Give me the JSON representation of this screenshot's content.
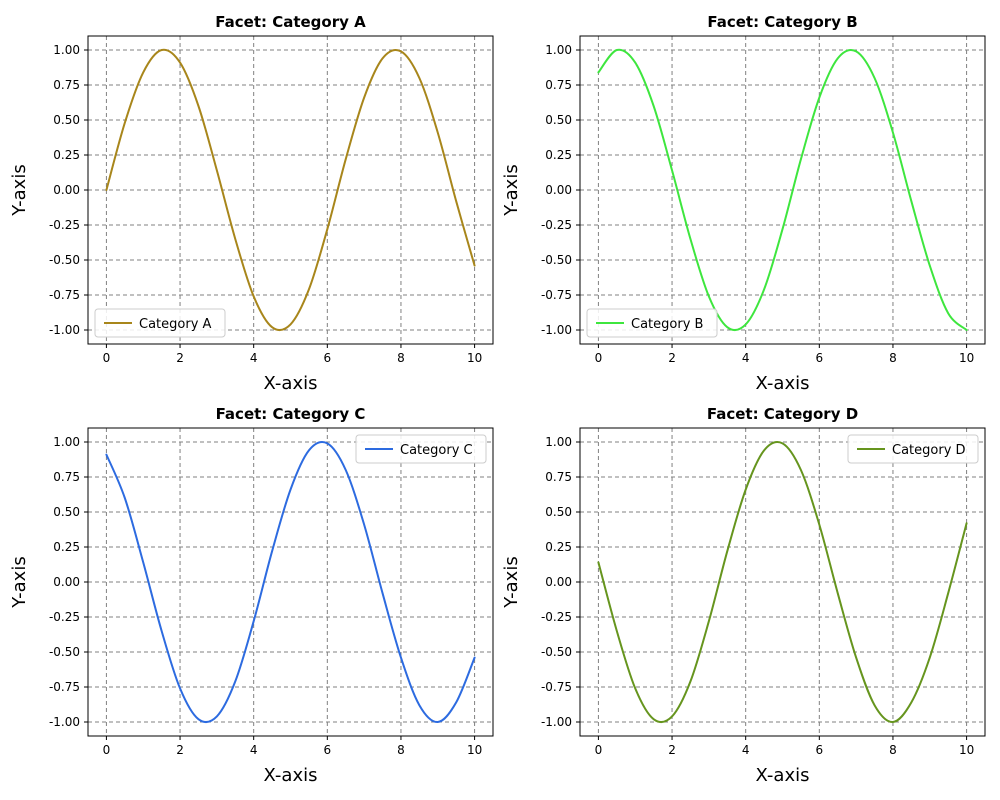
{
  "chart_data": [
    {
      "type": "line",
      "title": "Facet: Category A",
      "xlabel": "X-axis",
      "ylabel": "Y-axis",
      "xlim": [
        0,
        10
      ],
      "ylim": [
        -1.1,
        1.1
      ],
      "xticks": [
        "0",
        "2",
        "4",
        "6",
        "8",
        "10"
      ],
      "yticks": [
        "-1.00",
        "-0.75",
        "-0.50",
        "-0.25",
        "0.00",
        "0.25",
        "0.50",
        "0.75",
        "1.00"
      ],
      "grid": true,
      "legend_position": "lower-left",
      "series": [
        {
          "name": "Category A",
          "color": "#a8861b",
          "x": [
            0,
            0.5,
            1,
            1.5,
            2,
            2.5,
            3,
            3.5,
            4,
            4.5,
            5,
            5.5,
            6,
            6.5,
            7,
            7.5,
            8,
            8.5,
            9,
            9.5,
            10
          ],
          "y": [
            0.0,
            0.48,
            0.84,
            1.0,
            0.91,
            0.6,
            0.14,
            -0.35,
            -0.76,
            -0.98,
            -0.96,
            -0.71,
            -0.28,
            0.22,
            0.66,
            0.94,
            0.99,
            0.8,
            0.41,
            -0.08,
            -0.54
          ]
        }
      ]
    },
    {
      "type": "line",
      "title": "Facet: Category B",
      "xlabel": "X-axis",
      "ylabel": "Y-axis",
      "xlim": [
        0,
        10
      ],
      "ylim": [
        -1.1,
        1.1
      ],
      "xticks": [
        "0",
        "2",
        "4",
        "6",
        "8",
        "10"
      ],
      "yticks": [
        "-1.00",
        "-0.75",
        "-0.50",
        "-0.25",
        "0.00",
        "0.25",
        "0.50",
        "0.75",
        "1.00"
      ],
      "grid": true,
      "legend_position": "lower-left",
      "series": [
        {
          "name": "Category B",
          "color": "#3ee63e",
          "x": [
            0,
            0.5,
            1,
            1.5,
            2,
            2.5,
            3,
            3.5,
            4,
            4.5,
            5,
            5.5,
            6,
            6.5,
            7,
            7.5,
            8,
            8.5,
            9,
            9.5,
            10
          ],
          "y": [
            0.84,
            1.0,
            0.91,
            0.6,
            0.14,
            -0.35,
            -0.76,
            -0.98,
            -0.96,
            -0.71,
            -0.28,
            0.22,
            0.66,
            0.94,
            0.99,
            0.8,
            0.41,
            -0.08,
            -0.54,
            -0.88,
            -1.0
          ]
        }
      ]
    },
    {
      "type": "line",
      "title": "Facet: Category C",
      "xlabel": "X-axis",
      "ylabel": "Y-axis",
      "xlim": [
        0,
        10
      ],
      "ylim": [
        -1.1,
        1.1
      ],
      "xticks": [
        "0",
        "2",
        "4",
        "6",
        "8",
        "10"
      ],
      "yticks": [
        "-1.00",
        "-0.75",
        "-0.50",
        "-0.25",
        "0.00",
        "0.25",
        "0.50",
        "0.75",
        "1.00"
      ],
      "grid": true,
      "legend_position": "upper-right",
      "series": [
        {
          "name": "Category C",
          "color": "#2d6be0",
          "x": [
            0,
            0.5,
            1,
            1.5,
            2,
            2.5,
            3,
            3.5,
            4,
            4.5,
            5,
            5.5,
            6,
            6.5,
            7,
            7.5,
            8,
            8.5,
            9,
            9.5,
            10
          ],
          "y": [
            0.91,
            0.6,
            0.14,
            -0.35,
            -0.76,
            -0.98,
            -0.96,
            -0.71,
            -0.28,
            0.22,
            0.66,
            0.94,
            0.99,
            0.8,
            0.41,
            -0.08,
            -0.54,
            -0.88,
            -1.0,
            -0.86,
            -0.54
          ]
        }
      ]
    },
    {
      "type": "line",
      "title": "Facet: Category D",
      "xlabel": "X-axis",
      "ylabel": "Y-axis",
      "xlim": [
        0,
        10
      ],
      "ylim": [
        -1.1,
        1.1
      ],
      "xticks": [
        "0",
        "2",
        "4",
        "6",
        "8",
        "10"
      ],
      "yticks": [
        "-1.00",
        "-0.75",
        "-0.50",
        "-0.25",
        "0.00",
        "0.25",
        "0.50",
        "0.75",
        "1.00"
      ],
      "grid": true,
      "legend_position": "upper-right",
      "series": [
        {
          "name": "Category D",
          "color": "#66951e",
          "x": [
            0,
            0.5,
            1,
            1.5,
            2,
            2.5,
            3,
            3.5,
            4,
            4.5,
            5,
            5.5,
            6,
            6.5,
            7,
            7.5,
            8,
            8.5,
            9,
            9.5,
            10
          ],
          "y": [
            0.14,
            -0.35,
            -0.76,
            -0.98,
            -0.96,
            -0.71,
            -0.28,
            0.22,
            0.66,
            0.94,
            0.99,
            0.8,
            0.41,
            -0.08,
            -0.54,
            -0.88,
            -1.0,
            -0.86,
            -0.54,
            -0.08,
            0.42
          ]
        }
      ]
    }
  ]
}
